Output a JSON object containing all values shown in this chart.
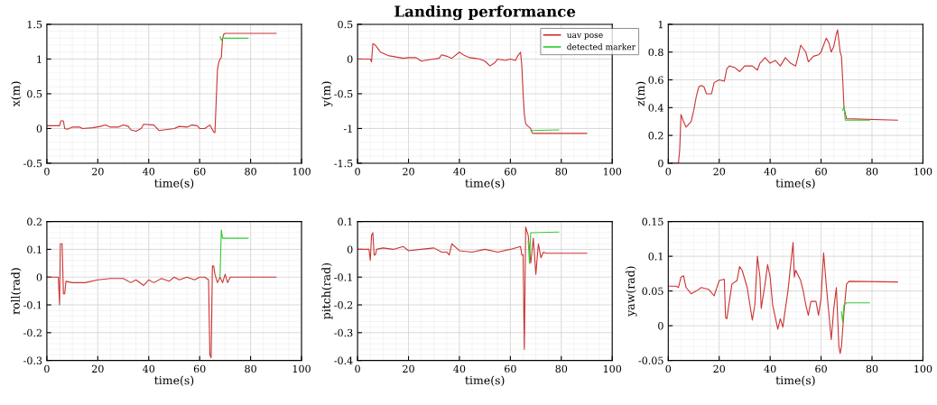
{
  "chart_data": [
    {
      "type": "line",
      "xlabel": "time(s)",
      "ylabel": "x(m)",
      "xlim": [
        0,
        100
      ],
      "xticks": [
        0,
        20,
        40,
        60,
        80,
        100
      ],
      "ylim": [
        -0.5,
        1.5
      ],
      "yticks": [
        -0.5,
        0,
        0.5,
        1,
        1.5
      ],
      "grid": true,
      "line_style": "solid",
      "series": [
        {
          "color": "#cc3333",
          "x": [
            0,
            5,
            5.5,
            6.5,
            7,
            8,
            10,
            13,
            14,
            18,
            21,
            23,
            25,
            28,
            30,
            32,
            33,
            35,
            37,
            38,
            42,
            44,
            48,
            50,
            52,
            55,
            57,
            59,
            60,
            62,
            64,
            65.5,
            66,
            66.5,
            67,
            67.5,
            68,
            68.5,
            69,
            69.5,
            70,
            90
          ],
          "values": [
            0.04,
            0.04,
            0.11,
            0.11,
            0.0,
            -0.01,
            0.02,
            0.02,
            0.0,
            0.01,
            0.03,
            0.05,
            0.02,
            0.02,
            0.05,
            0.03,
            -0.02,
            -0.04,
            0.0,
            0.06,
            0.05,
            -0.03,
            -0.01,
            0.0,
            0.03,
            0.02,
            0.05,
            0.04,
            0.0,
            0.0,
            0.05,
            -0.05,
            -0.06,
            0.4,
            0.85,
            0.95,
            1.0,
            1.02,
            1.3,
            1.36,
            1.37,
            1.37
          ]
        },
        {
          "color": "#33cc33",
          "x": [
            68,
            68.5,
            69,
            79
          ],
          "values": [
            1.32,
            1.27,
            1.3,
            1.3
          ]
        }
      ]
    },
    {
      "type": "line",
      "title": "Landing performance",
      "xlabel": "time(s)",
      "ylabel": "y(m)",
      "xlim": [
        0,
        100
      ],
      "xticks": [
        0,
        20,
        40,
        60,
        80,
        100
      ],
      "ylim": [
        -1.5,
        0.5
      ],
      "yticks": [
        -1.5,
        -1,
        -0.5,
        0,
        0.5
      ],
      "grid": true,
      "legend": "top right",
      "line_style": "solid",
      "series": [
        {
          "name": "uav pose",
          "color": "#cc3333",
          "x": [
            0,
            5,
            5.5,
            6,
            7,
            8,
            9,
            12,
            15,
            18,
            20,
            23,
            25,
            28,
            32,
            33,
            35,
            37,
            40,
            42,
            44,
            46,
            48,
            50,
            52,
            54,
            55,
            58,
            60,
            62,
            63,
            64,
            64.5,
            65,
            65.5,
            66,
            67,
            68,
            68.5,
            69,
            90
          ],
          "values": [
            0,
            0,
            -0.04,
            0.22,
            0.2,
            0.15,
            0.1,
            0.05,
            0.03,
            0.01,
            0.02,
            0.02,
            -0.03,
            -0.01,
            0.01,
            0.06,
            0.04,
            0.01,
            0.1,
            0.05,
            0.02,
            0.01,
            0.0,
            -0.03,
            -0.1,
            -0.05,
            0.0,
            -0.02,
            0.0,
            -0.02,
            0.05,
            0.1,
            -0.1,
            -0.5,
            -0.8,
            -0.93,
            -0.97,
            -1.0,
            -1.06,
            -1.07,
            -1.07
          ]
        },
        {
          "name": "detected marker",
          "color": "#33cc33",
          "x": [
            68,
            79
          ],
          "values": [
            -1.03,
            -1.02
          ]
        }
      ]
    },
    {
      "type": "line",
      "xlabel": "time(s)",
      "ylabel": "z(m)",
      "xlim": [
        0,
        100
      ],
      "xticks": [
        0,
        20,
        40,
        60,
        80,
        100
      ],
      "ylim": [
        0,
        1
      ],
      "yticks": [
        0,
        0.2,
        0.4,
        0.6,
        0.8,
        1
      ],
      "grid": true,
      "line_style": "solid",
      "series": [
        {
          "color": "#cc3333",
          "x": [
            0,
            4,
            4.5,
            5,
            6,
            7,
            8,
            9,
            10,
            11,
            12,
            13,
            14,
            15,
            17,
            18,
            20,
            22,
            23,
            24,
            26,
            28,
            30,
            33,
            35,
            36,
            38,
            40,
            42,
            44,
            46,
            48,
            50,
            51,
            52,
            54,
            55,
            57,
            59,
            60,
            61,
            62,
            63,
            64,
            65,
            66,
            66.5,
            67,
            67.5,
            68,
            68.5,
            69,
            70,
            90
          ],
          "values": [
            0,
            0,
            0.1,
            0.35,
            0.3,
            0.26,
            0.28,
            0.3,
            0.38,
            0.48,
            0.55,
            0.56,
            0.55,
            0.5,
            0.5,
            0.58,
            0.6,
            0.59,
            0.68,
            0.7,
            0.69,
            0.66,
            0.7,
            0.7,
            0.67,
            0.72,
            0.76,
            0.72,
            0.74,
            0.7,
            0.76,
            0.72,
            0.7,
            0.77,
            0.85,
            0.8,
            0.73,
            0.77,
            0.78,
            0.8,
            0.85,
            0.9,
            0.87,
            0.8,
            0.84,
            0.93,
            0.96,
            0.88,
            0.8,
            0.77,
            0.6,
            0.4,
            0.32,
            0.31
          ]
        },
        {
          "color": "#33cc33",
          "x": [
            68.5,
            69,
            69.5,
            79
          ],
          "values": [
            0.38,
            0.41,
            0.31,
            0.31
          ]
        }
      ]
    },
    {
      "type": "line",
      "xlabel": "time(s)",
      "ylabel": "roll(rad)",
      "xlim": [
        0,
        100
      ],
      "xticks": [
        0,
        20,
        40,
        60,
        80,
        100
      ],
      "ylim": [
        -0.3,
        0.2
      ],
      "yticks": [
        -0.3,
        -0.2,
        -0.1,
        0,
        0.1,
        0.2
      ],
      "grid": true,
      "line_style": "solid",
      "series": [
        {
          "color": "#cc3333",
          "x": [
            0,
            4.5,
            5,
            5.3,
            6,
            6.5,
            7,
            7.5,
            10,
            15,
            20,
            25,
            30,
            33,
            35,
            38,
            40,
            42,
            45,
            48,
            50,
            52,
            55,
            58,
            60,
            62,
            63.5,
            64,
            64.5,
            65,
            65.5,
            66,
            67,
            68,
            69,
            70,
            71,
            72,
            90
          ],
          "values": [
            0,
            0,
            -0.1,
            0.12,
            0.12,
            -0.06,
            -0.06,
            -0.015,
            -0.02,
            -0.02,
            -0.01,
            -0.005,
            -0.005,
            -0.02,
            -0.01,
            -0.03,
            -0.01,
            -0.02,
            -0.005,
            -0.015,
            0.0,
            -0.01,
            0.0,
            -0.01,
            0.0,
            0.0,
            -0.01,
            -0.28,
            -0.29,
            0.04,
            0.04,
            0.01,
            -0.02,
            0.0,
            -0.02,
            0.01,
            -0.02,
            0.0,
            0.0
          ]
        },
        {
          "color": "#33cc33",
          "x": [
            68,
            68.5,
            69,
            79
          ],
          "values": [
            0.0,
            0.17,
            0.14,
            0.14
          ]
        }
      ]
    },
    {
      "type": "line",
      "xlabel": "time(s)",
      "ylabel": "pitch(rad)",
      "xlim": [
        0,
        100
      ],
      "xticks": [
        0,
        20,
        40,
        60,
        80,
        100
      ],
      "ylim": [
        -0.4,
        0.1
      ],
      "yticks": [
        -0.4,
        -0.3,
        -0.2,
        -0.1,
        0,
        0.1
      ],
      "grid": true,
      "line_style": "solid",
      "series": [
        {
          "color": "#cc3333",
          "x": [
            0,
            4.5,
            5,
            5.5,
            6,
            6.5,
            7,
            7.5,
            10,
            14,
            18,
            20,
            25,
            30,
            33,
            35,
            36,
            37,
            40,
            45,
            50,
            55,
            60,
            64,
            64.5,
            65,
            65.5,
            66,
            67,
            68,
            69,
            70,
            71,
            72,
            73,
            74,
            90
          ],
          "values": [
            0,
            0,
            -0.04,
            0.05,
            0.06,
            -0.02,
            -0.02,
            0.0,
            0.005,
            0.0,
            0.01,
            -0.005,
            0.0,
            0.005,
            -0.01,
            -0.01,
            -0.02,
            0.02,
            -0.005,
            -0.01,
            0.0,
            -0.01,
            0.0,
            0.01,
            -0.02,
            -0.02,
            -0.36,
            0.08,
            0.05,
            -0.05,
            0.04,
            -0.09,
            0.02,
            -0.03,
            -0.01,
            -0.014,
            -0.014
          ]
        },
        {
          "color": "#33cc33",
          "x": [
            67,
            67.5,
            68,
            79
          ],
          "values": [
            0.03,
            -0.05,
            0.06,
            0.062
          ]
        }
      ]
    },
    {
      "type": "line",
      "xlabel": "time(s)",
      "ylabel": "yaw(rad)",
      "xlim": [
        0,
        100
      ],
      "xticks": [
        0,
        20,
        40,
        60,
        80,
        100
      ],
      "ylim": [
        -0.05,
        0.15
      ],
      "yticks": [
        -0.05,
        0,
        0.05,
        0.1,
        0.15
      ],
      "grid": true,
      "line_style": "solid",
      "series": [
        {
          "color": "#cc3333",
          "x": [
            0,
            3,
            4,
            5,
            6,
            7,
            9,
            11,
            13,
            16,
            18,
            20,
            22,
            22.5,
            23,
            24,
            25,
            27,
            28,
            29,
            31,
            33,
            34,
            35,
            36,
            36.5,
            38,
            39,
            40,
            41,
            43,
            44,
            45,
            46,
            47,
            48,
            49,
            49.5,
            50,
            52,
            53,
            54,
            55,
            56,
            58,
            59,
            60,
            61,
            62,
            63,
            64,
            65,
            66,
            67,
            67.5,
            68,
            69,
            70,
            71,
            90
          ],
          "values": [
            0.057,
            0.057,
            0.055,
            0.07,
            0.072,
            0.055,
            0.046,
            0.05,
            0.055,
            0.052,
            0.043,
            0.065,
            0.067,
            0.012,
            0.01,
            0.035,
            0.06,
            0.065,
            0.085,
            0.08,
            0.055,
            0.008,
            0.03,
            0.1,
            0.07,
            0.025,
            0.06,
            0.088,
            0.07,
            0.03,
            -0.005,
            0.01,
            -0.002,
            0.025,
            0.05,
            0.085,
            0.12,
            0.07,
            0.08,
            0.065,
            0.05,
            0.03,
            0.015,
            0.035,
            0.035,
            0.015,
            0.04,
            0.105,
            0.06,
            0.02,
            -0.02,
            0.025,
            0.055,
            -0.03,
            -0.04,
            -0.03,
            0.02,
            0.06,
            0.064,
            0.063
          ]
        },
        {
          "color": "#33cc33",
          "x": [
            68,
            68.5,
            69,
            70,
            79
          ],
          "values": [
            0.02,
            0.005,
            0.03,
            0.033,
            0.033
          ]
        }
      ]
    }
  ]
}
